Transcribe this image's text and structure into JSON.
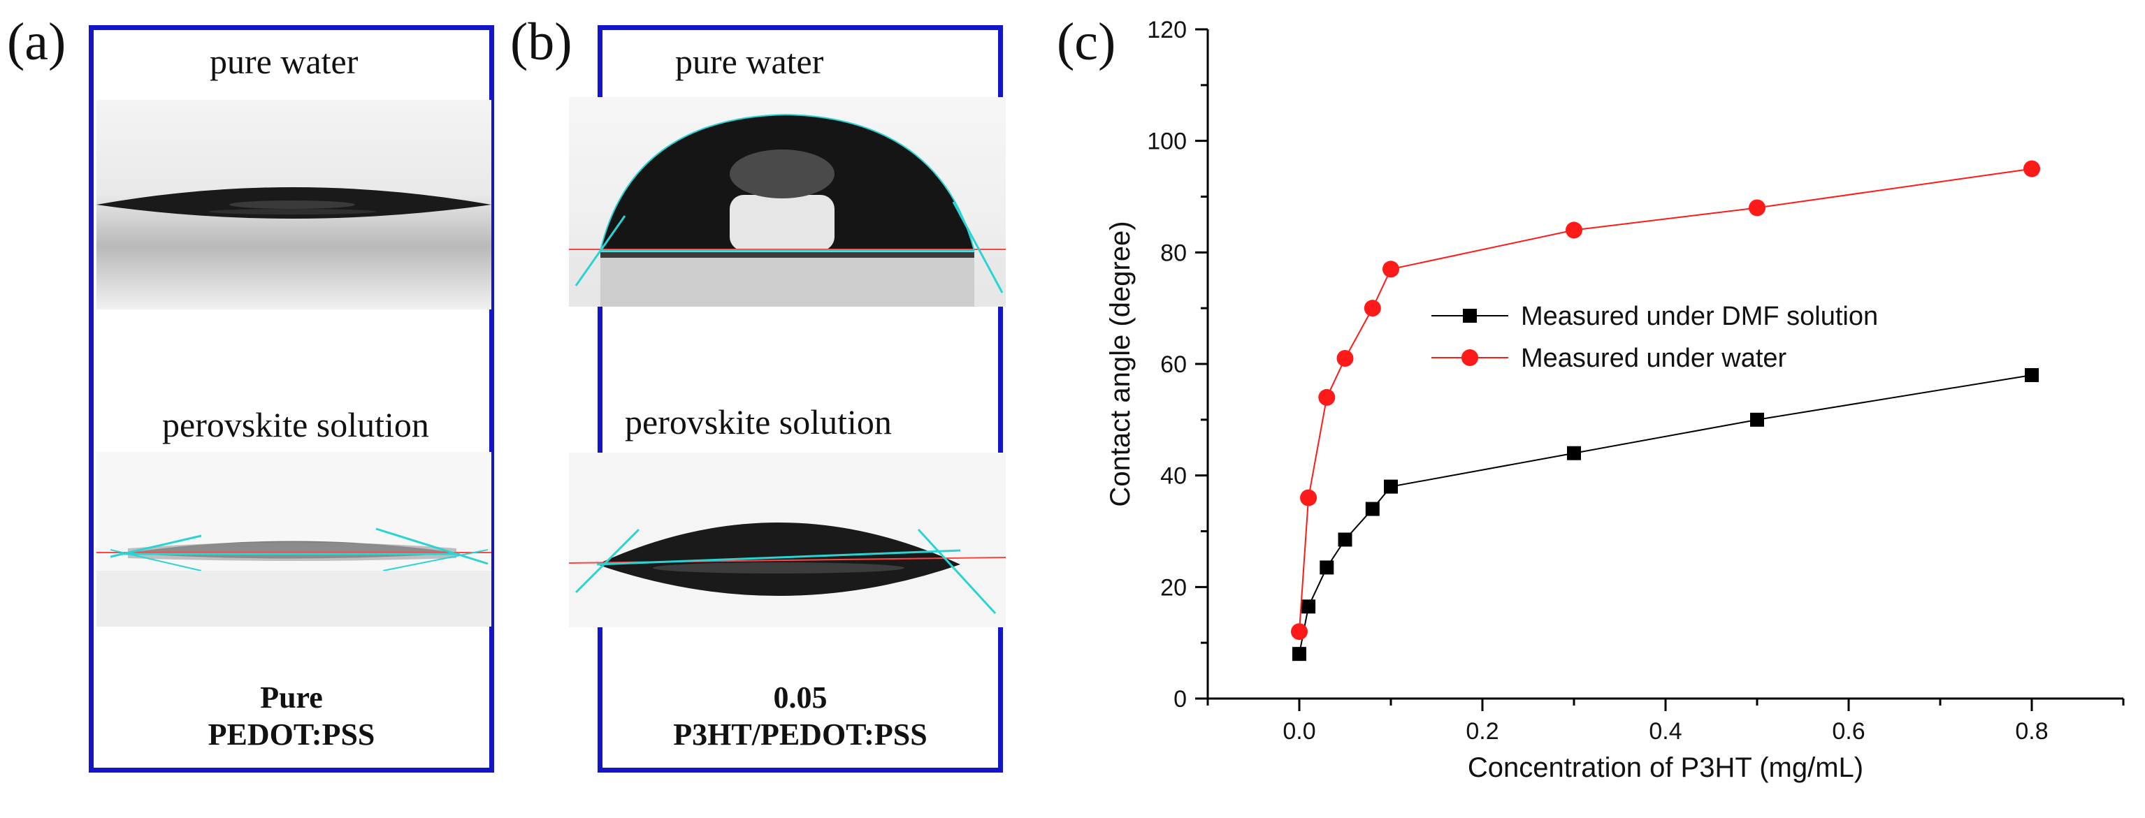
{
  "panels": {
    "a": {
      "letter": "(a)",
      "top_caption": "pure water",
      "bottom_caption": "perovskite solution",
      "sample_line1": "Pure",
      "sample_line2": "PEDOT:PSS"
    },
    "b": {
      "letter": "(b)",
      "top_caption": "pure water",
      "bottom_caption": "perovskite solution",
      "sample_line1": "0.05",
      "sample_line2": "P3HT/PEDOT:PSS"
    },
    "c": {
      "letter": "(c)"
    }
  },
  "colors": {
    "frame": "#1216c8",
    "dmf_series": "#000000",
    "water_series": "#ff1a1a",
    "fit_lines": "#2ad4d4"
  },
  "chart_data": {
    "type": "line",
    "xlabel": "Concentration of P3HT (mg/mL)",
    "ylabel": "Contact angle (degree)",
    "xlim": [
      -0.1,
      0.9
    ],
    "ylim": [
      0,
      120
    ],
    "x_ticks": [
      0.0,
      0.2,
      0.4,
      0.6,
      0.8
    ],
    "x_tick_labels": [
      "0.0",
      "0.2",
      "0.4",
      "0.6",
      "0.8"
    ],
    "y_ticks": [
      0,
      20,
      40,
      60,
      80,
      100,
      120
    ],
    "y_tick_labels": [
      "0",
      "20",
      "40",
      "60",
      "80",
      "100",
      "120"
    ],
    "legend_position": "center",
    "series": [
      {
        "name": "Measured under DMF solution",
        "marker": "square",
        "color": "#000000",
        "x": [
          0.0,
          0.01,
          0.03,
          0.05,
          0.08,
          0.1,
          0.3,
          0.5,
          0.8
        ],
        "y": [
          8,
          16.5,
          23.5,
          28.5,
          34,
          38,
          44,
          50,
          58
        ]
      },
      {
        "name": "Measured under water",
        "marker": "circle",
        "color": "#ff1a1a",
        "x": [
          0.0,
          0.01,
          0.03,
          0.05,
          0.08,
          0.1,
          0.3,
          0.5,
          0.8
        ],
        "y": [
          12,
          36,
          54,
          61,
          70,
          77,
          84,
          88,
          95
        ]
      }
    ]
  }
}
